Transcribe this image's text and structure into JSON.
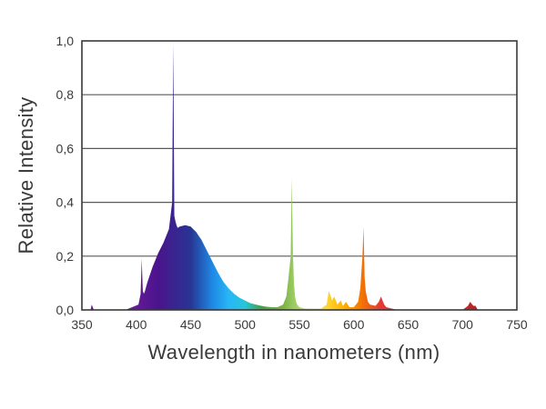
{
  "chart_data": {
    "type": "area",
    "title": "",
    "xlabel": "Wavelength in nanometers (nm)",
    "ylabel": "Relative Intensity",
    "xlim": [
      350,
      750
    ],
    "ylim": [
      0,
      1.0
    ],
    "x_ticks": [
      350,
      400,
      450,
      500,
      550,
      600,
      650,
      700,
      750
    ],
    "x_tick_labels": [
      "350",
      "400",
      "450",
      "500",
      "550",
      "600",
      "650",
      "700",
      "750"
    ],
    "y_ticks": [
      0.0,
      0.2,
      0.4,
      0.6,
      0.8,
      1.0
    ],
    "y_tick_labels": [
      "0,0",
      "0,2",
      "0,4",
      "0,6",
      "0,8",
      "1,0"
    ],
    "grid": "horizontal",
    "series": [
      {
        "name": "Relative Intensity",
        "x": [
          350,
          358,
          359,
          360,
          361,
          362,
          390,
          402,
          404,
          405,
          406,
          407,
          408,
          410,
          415,
          420,
          425,
          430,
          433,
          434,
          435,
          436,
          437,
          438,
          440,
          445,
          450,
          455,
          460,
          465,
          470,
          475,
          480,
          485,
          490,
          495,
          500,
          505,
          510,
          515,
          520,
          525,
          530,
          535,
          538,
          540,
          542,
          543,
          544,
          545,
          546,
          547,
          548,
          550,
          555,
          570,
          575,
          577,
          579,
          580,
          582,
          585,
          588,
          590,
          593,
          596,
          600,
          604,
          606,
          608,
          609,
          610,
          611,
          612,
          613,
          615,
          620,
          623,
          625,
          628,
          630,
          640,
          660,
          700,
          705,
          707,
          710,
          712,
          714,
          720,
          750
        ],
        "y": [
          0,
          0,
          0.02,
          0.01,
          0,
          0,
          0,
          0.02,
          0.06,
          0.19,
          0.07,
          0.06,
          0.07,
          0.1,
          0.16,
          0.21,
          0.25,
          0.3,
          0.4,
          0.99,
          0.35,
          0.33,
          0.315,
          0.305,
          0.31,
          0.315,
          0.31,
          0.29,
          0.26,
          0.22,
          0.18,
          0.14,
          0.105,
          0.08,
          0.06,
          0.045,
          0.035,
          0.025,
          0.02,
          0.015,
          0.012,
          0.01,
          0.01,
          0.02,
          0.05,
          0.12,
          0.2,
          0.49,
          0.22,
          0.1,
          0.05,
          0.03,
          0.02,
          0.01,
          0.005,
          0.005,
          0.02,
          0.07,
          0.05,
          0.035,
          0.05,
          0.02,
          0.035,
          0.015,
          0.03,
          0.01,
          0.01,
          0.03,
          0.08,
          0.2,
          0.31,
          0.12,
          0.07,
          0.05,
          0.03,
          0.02,
          0.015,
          0.03,
          0.05,
          0.02,
          0.01,
          0,
          0,
          0,
          0.015,
          0.03,
          0.015,
          0.015,
          0,
          0,
          0
        ]
      }
    ],
    "colors": {
      "axis": "#3a3a3a",
      "grid": "#5a5a5a",
      "text": "#3a3a3a",
      "background": "#ffffff"
    },
    "gradient_stops": [
      {
        "x": 395,
        "color": "#6a1b9a"
      },
      {
        "x": 420,
        "color": "#4a148c"
      },
      {
        "x": 450,
        "color": "#283593"
      },
      {
        "x": 470,
        "color": "#1e88e5"
      },
      {
        "x": 485,
        "color": "#29b6f6"
      },
      {
        "x": 500,
        "color": "#26c6da"
      },
      {
        "x": 515,
        "color": "#43a047"
      },
      {
        "x": 535,
        "color": "#7cb342"
      },
      {
        "x": 545,
        "color": "#9ccc65"
      },
      {
        "x": 560,
        "color": "#d4e157"
      },
      {
        "x": 575,
        "color": "#fdd835"
      },
      {
        "x": 590,
        "color": "#ffb300"
      },
      {
        "x": 605,
        "color": "#f57c00"
      },
      {
        "x": 625,
        "color": "#e53935"
      },
      {
        "x": 700,
        "color": "#c62828"
      },
      {
        "x": 720,
        "color": "#b71c1c"
      }
    ]
  }
}
